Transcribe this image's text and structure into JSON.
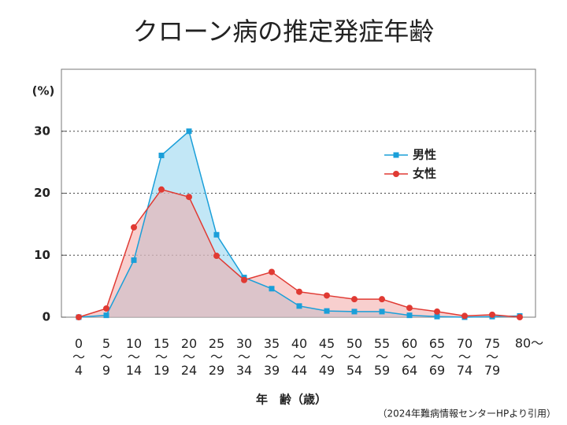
{
  "chart_data": {
    "type": "area-line",
    "title": "クローン病の推定発症年齢",
    "y_label": "(%)",
    "x_label": "年　齢（歳）",
    "source": "（2024年難病情報センターHPより引用）",
    "categories": [
      "0〜4",
      "5〜9",
      "10〜14",
      "15〜19",
      "20〜24",
      "25〜29",
      "30〜34",
      "35〜39",
      "40〜44",
      "45〜49",
      "50〜54",
      "55〜59",
      "60〜64",
      "65〜69",
      "70〜74",
      "75〜79",
      "80〜"
    ],
    "series": [
      {
        "name": "男性",
        "color": "#1a9fd9",
        "fill": "#8fd3ef",
        "marker": "square",
        "values": [
          0,
          0.3,
          9.2,
          26.1,
          30,
          13.3,
          6.4,
          4.6,
          1.8,
          1.0,
          0.9,
          0.9,
          0.3,
          0.1,
          0,
          0.1,
          0.2
        ]
      },
      {
        "name": "女性",
        "color": "#e03a33",
        "fill": "#f3a7a6",
        "marker": "circle",
        "values": [
          0,
          1.4,
          14.5,
          20.6,
          19.4,
          9.9,
          6.0,
          7.3,
          4.1,
          3.5,
          2.9,
          2.9,
          1.5,
          0.9,
          0.2,
          0.4,
          0
        ]
      }
    ],
    "ylim": [
      0,
      40
    ],
    "yticks": [
      0,
      10,
      20,
      30
    ],
    "grid": true,
    "legend": "upper-right"
  }
}
